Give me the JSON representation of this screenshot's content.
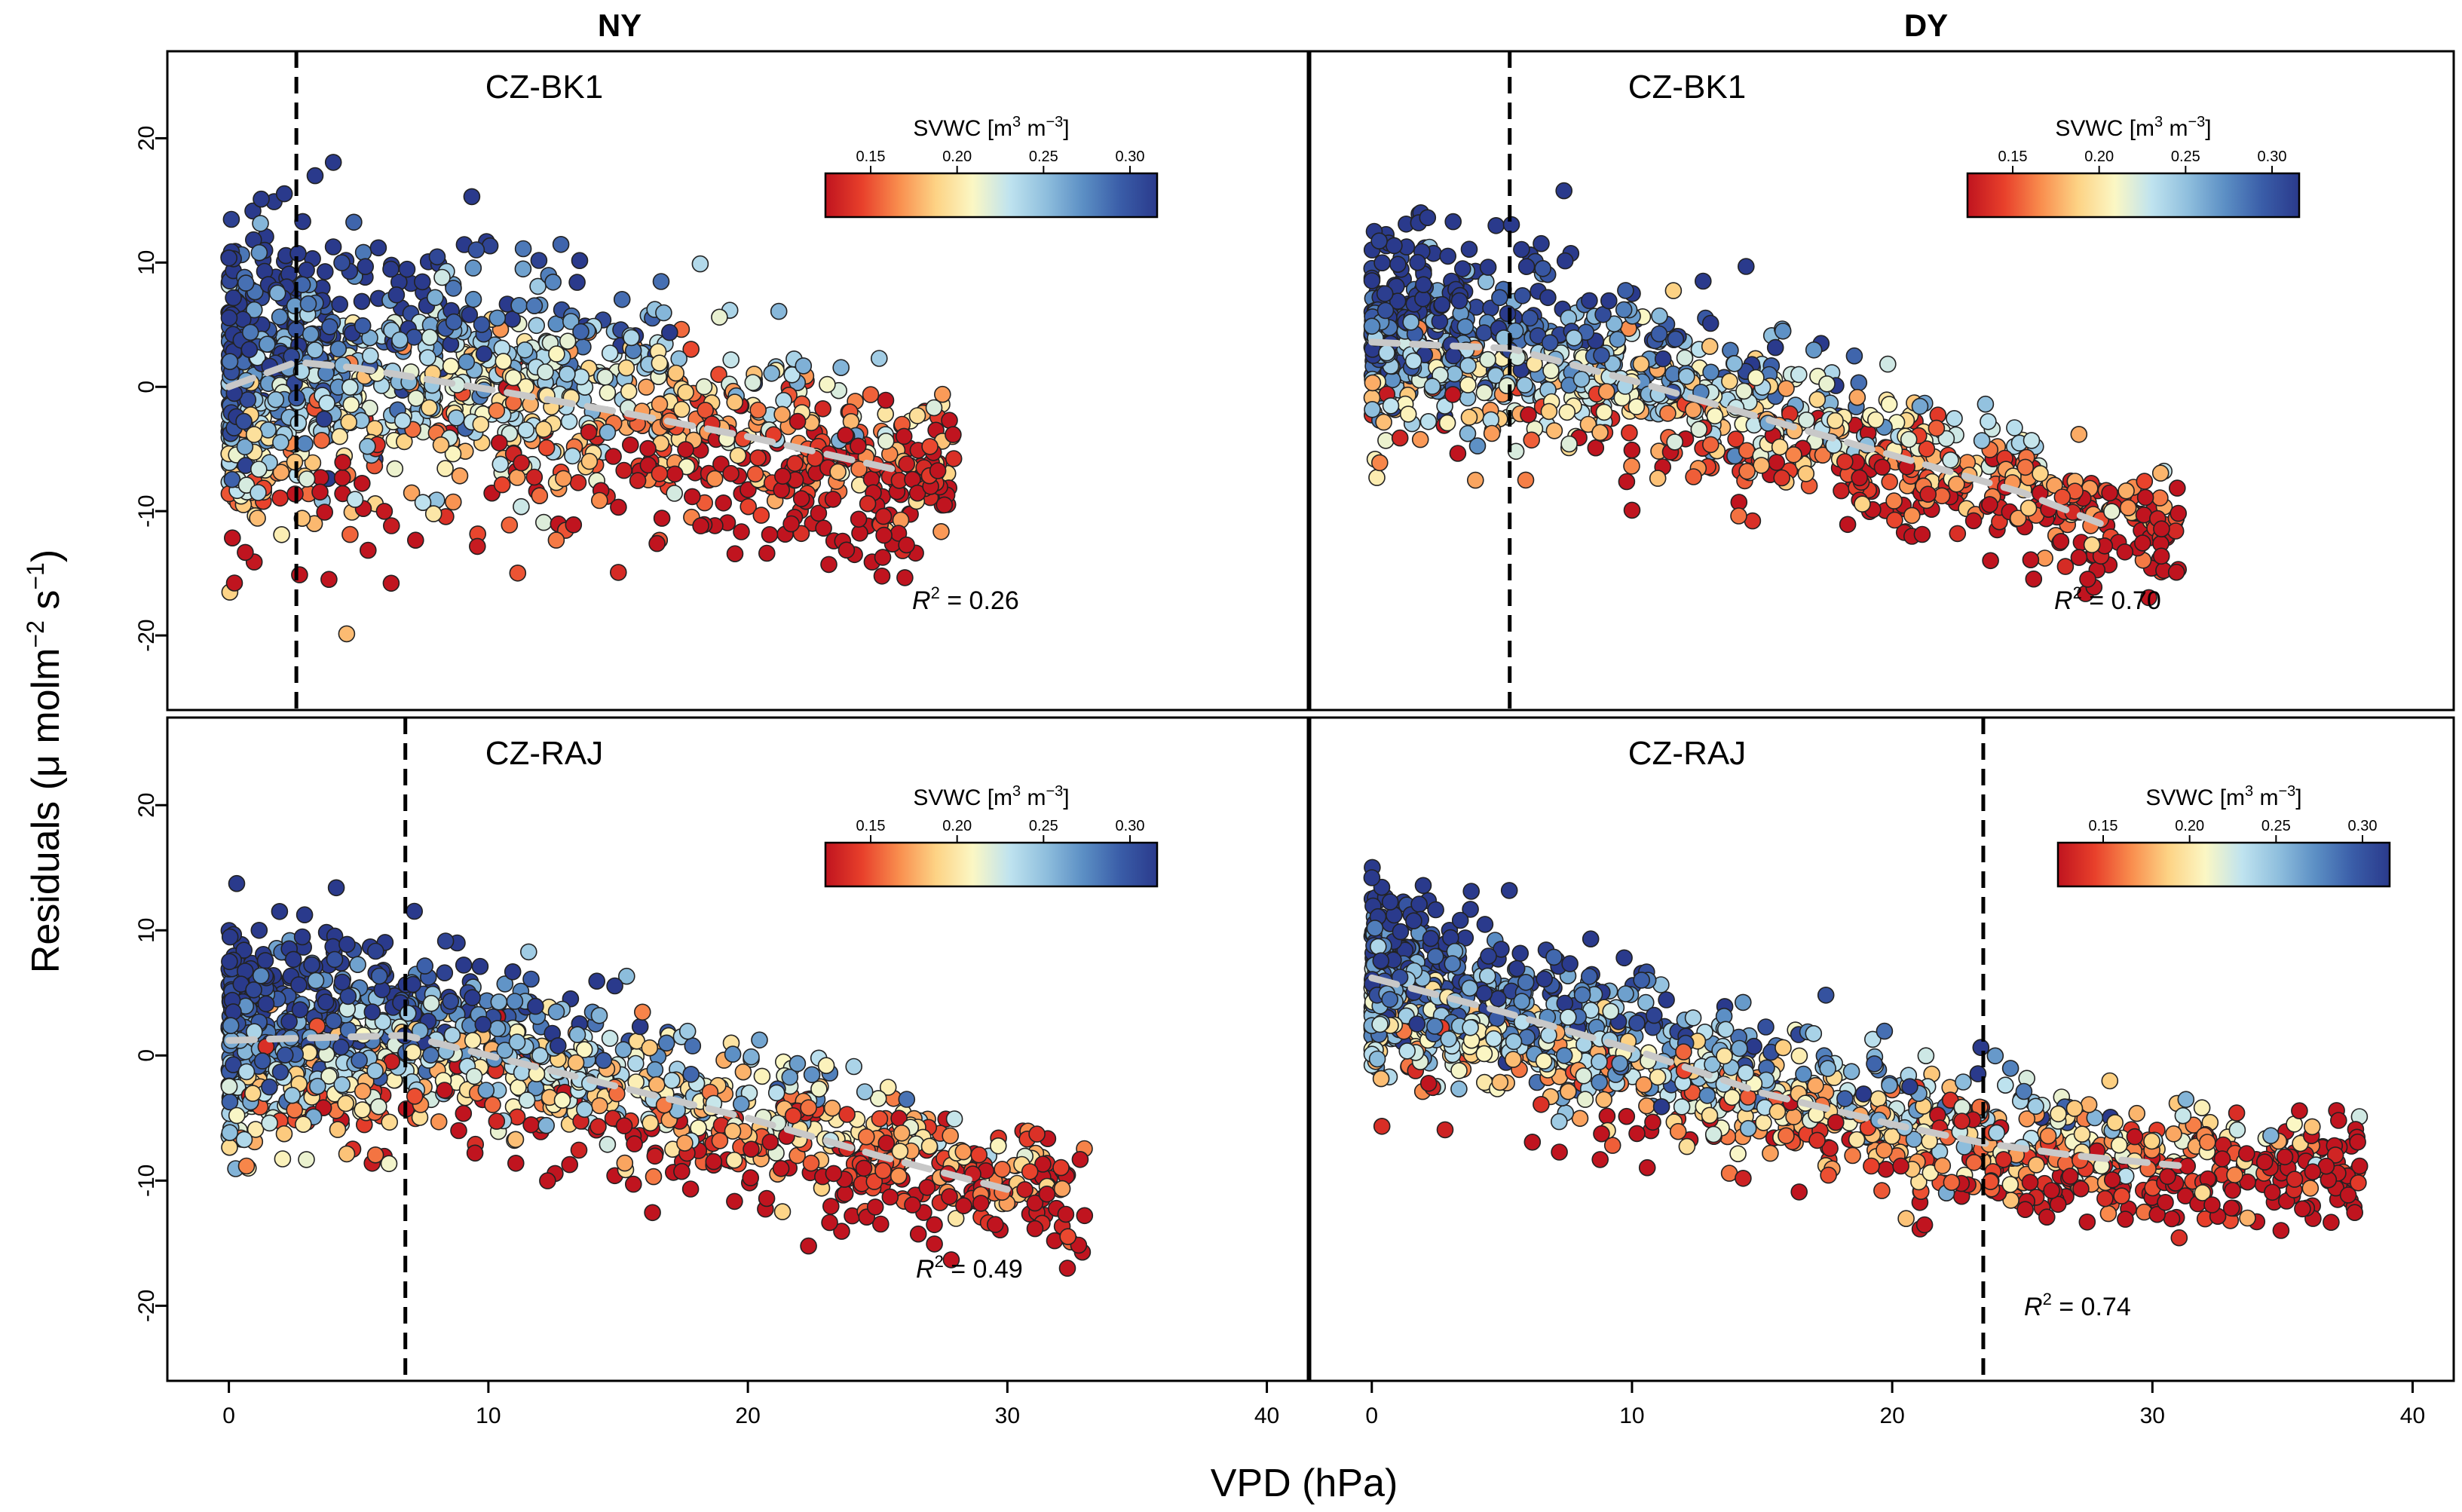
{
  "figure": {
    "ylabel": "Residuals (μ molm⁻² s⁻¹)",
    "ylabel_parts": {
      "main": "Residuals (μ molm",
      "exp1": "−2",
      "mid": " s",
      "exp2": "−1",
      "end": ")"
    },
    "xlabel": "VPD (hPa)",
    "columns": [
      "NY",
      "DY"
    ],
    "x_ticks": [
      "0",
      "10",
      "20",
      "30",
      "40"
    ],
    "y_ticks": [
      "20",
      "10",
      "0",
      "-10",
      "-20"
    ],
    "colorbar_label": "SVWC [m³ m⁻³]",
    "colorbar_parts": {
      "main": "SVWC [m",
      "exp1": "3",
      "mid": " m",
      "exp2": "−3",
      "end": "]"
    },
    "colorbar_ticks": [
      "0.15",
      "0.20",
      "0.25",
      "0.30"
    ],
    "colormap": [
      "#c0141f",
      "#e8402b",
      "#f98e4e",
      "#fdd385",
      "#fbf7c4",
      "#bfe3ef",
      "#8ebedd",
      "#5b8ec4",
      "#3a5da8",
      "#2a3a8c"
    ],
    "fit_line_color": "#c8c8c8",
    "point_edge_color": "#222222"
  },
  "chart_data": [
    {
      "type": "scatter",
      "column": "NY",
      "title": "CZ-BK1",
      "xlim": [
        -1.5,
        41
      ],
      "ylim": [
        -26,
        27
      ],
      "threshold_vpd": 2.6,
      "r2_label": "R",
      "r2_value": "0.26",
      "fit_line": {
        "x": [
          0,
          2.6,
          5,
          10,
          15,
          20,
          26
        ],
        "y": [
          0,
          2,
          1.5,
          -0.2,
          -2,
          -4,
          -6.8
        ]
      },
      "point_cloud": {
        "n": 1300,
        "x_range": [
          0,
          28
        ],
        "y_center": [
          0.5,
          -7
        ],
        "y_spread": 8,
        "svwc_range": [
          0.12,
          0.33
        ]
      }
    },
    {
      "type": "scatter",
      "column": "DY",
      "title": "CZ-BK1",
      "xlim": [
        -1.5,
        41
      ],
      "ylim": [
        -26,
        27
      ],
      "threshold_vpd": 5.3,
      "r2_label": "R",
      "r2_value": "0.70",
      "fit_line": {
        "x": [
          0,
          3,
          5.3,
          10,
          15,
          20,
          25,
          28
        ],
        "y": [
          3.6,
          3.3,
          3.1,
          0.5,
          -2.5,
          -5.5,
          -8.5,
          -11
        ]
      },
      "point_cloud": {
        "n": 1100,
        "x_range": [
          0,
          31
        ],
        "y_center": [
          4,
          -10
        ],
        "y_spread": 5.5,
        "svwc_range": [
          0.12,
          0.33
        ]
      }
    },
    {
      "type": "scatter",
      "column": "NY",
      "title": "CZ-RAJ",
      "xlim": [
        -1.5,
        41
      ],
      "ylim": [
        -26,
        27
      ],
      "threshold_vpd": 6.8,
      "r2_label": "R",
      "r2_value": "0.49",
      "fit_line": {
        "x": [
          0,
          3,
          6.8,
          10,
          15,
          20,
          25,
          30
        ],
        "y": [
          1.2,
          1.4,
          1.6,
          0,
          -2.5,
          -5,
          -8,
          -10.7
        ]
      },
      "point_cloud": {
        "n": 1300,
        "x_range": [
          0,
          33
        ],
        "y_center": [
          2,
          -11
        ],
        "y_spread": 5.5,
        "svwc_range": [
          0.12,
          0.33
        ]
      }
    },
    {
      "type": "scatter",
      "column": "DY",
      "title": "CZ-RAJ",
      "xlim": [
        -1.5,
        41
      ],
      "ylim": [
        -26,
        27
      ],
      "threshold_vpd": 23.5,
      "r2_label": "R",
      "r2_value": "0.74",
      "fit_line": {
        "x": [
          0,
          5,
          10,
          15,
          20,
          23.5,
          27,
          31
        ],
        "y": [
          6.2,
          3.5,
          0.5,
          -3,
          -5.5,
          -7,
          -8,
          -8.8
        ]
      },
      "point_cloud": {
        "n": 1400,
        "x_range": [
          0,
          38
        ],
        "y_center": [
          4,
          -12
        ],
        "y_spread": 5,
        "svwc_range": [
          0.12,
          0.33
        ]
      }
    }
  ]
}
